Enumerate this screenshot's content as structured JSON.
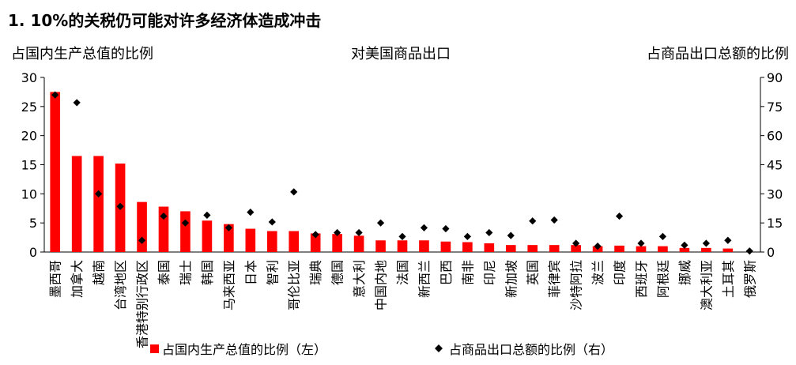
{
  "chart_data": {
    "type": "bar",
    "title": "1. 10%的关税仍可能对许多经济体造成冲击",
    "subtitle": "对美国商品出口",
    "ylabel_left": "占国内生产总值的比例",
    "ylabel_right": "占商品出口总额的比例",
    "ylim_left": [
      0,
      30
    ],
    "yticks_left": [
      0,
      5,
      10,
      15,
      20,
      25,
      30
    ],
    "ylim_right": [
      0,
      90
    ],
    "yticks_right": [
      0,
      15,
      30,
      45,
      60,
      75,
      90
    ],
    "grid": false,
    "legend_position": "bottom",
    "categories": [
      "墨西哥",
      "加拿大",
      "越南",
      "台湾地区",
      "香港特别行政区",
      "泰国",
      "瑞士",
      "韩国",
      "马来西亚",
      "日本",
      "智利",
      "哥伦比亚",
      "瑞典",
      "德国",
      "意大利",
      "中国内地",
      "法国",
      "新西兰",
      "巴西",
      "南非",
      "印尼",
      "新加坡",
      "英国",
      "菲律宾",
      "沙特阿拉",
      "波兰",
      "印度",
      "西班牙",
      "阿根廷",
      "挪威",
      "澳大利亚",
      "土耳其",
      "俄罗斯"
    ],
    "series": [
      {
        "name": "占国内生产总值的比例（左）",
        "type": "bar",
        "axis": "left",
        "color": "#ff0000",
        "values": [
          27.5,
          16.5,
          16.5,
          15.2,
          8.6,
          7.8,
          7.0,
          5.4,
          4.8,
          4.0,
          3.6,
          3.6,
          3.2,
          3.1,
          2.8,
          2.0,
          2.0,
          2.0,
          1.8,
          1.7,
          1.5,
          1.2,
          1.2,
          1.2,
          1.2,
          1.0,
          1.1,
          1.0,
          1.0,
          0.7,
          0.7,
          0.6,
          0.0
        ]
      },
      {
        "name": "占商品出口总额的比例（右）",
        "type": "scatter",
        "axis": "right",
        "color": "#000000",
        "marker": "diamond",
        "values": [
          81,
          77,
          30,
          23.5,
          6,
          18.5,
          15,
          19,
          12.5,
          20.5,
          15.5,
          31,
          9,
          10,
          10,
          15,
          8,
          12.5,
          12,
          8,
          10,
          8.5,
          16,
          16.5,
          4.5,
          3,
          18.5,
          4.5,
          8,
          3.5,
          4.5,
          6,
          0.5
        ]
      }
    ]
  }
}
